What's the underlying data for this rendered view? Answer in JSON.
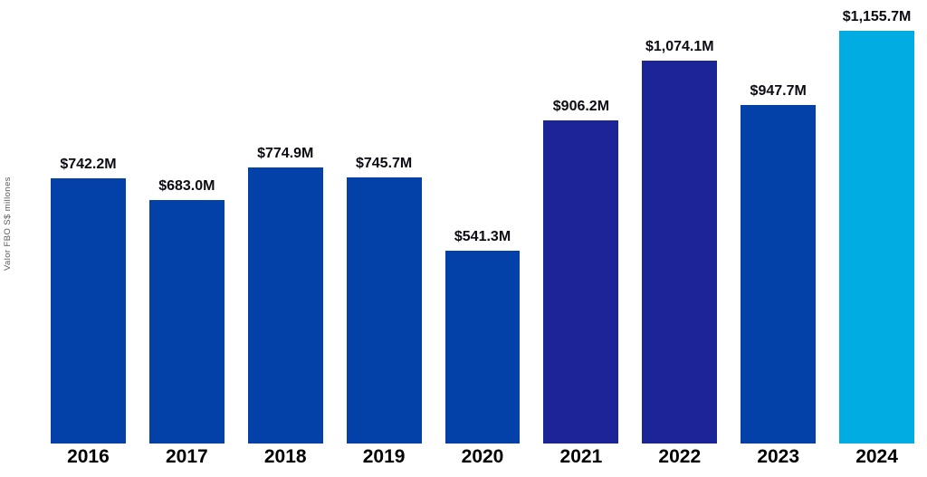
{
  "chart_data": {
    "type": "bar",
    "title": "",
    "xlabel": "",
    "ylabel": "Valor FBO S$ millones",
    "categories": [
      "2016",
      "2017",
      "2018",
      "2019",
      "2020",
      "2021",
      "2022",
      "2023",
      "2024"
    ],
    "values": [
      742.2,
      683.0,
      774.9,
      745.7,
      541.3,
      906.2,
      1074.1,
      947.7,
      1155.7
    ],
    "value_labels": [
      "$742.2M",
      "$683.0M",
      "$774.9M",
      "$745.7M",
      "$541.3M",
      "$906.2M",
      "$1,074.1M",
      "$947.7M",
      "$1,155.7M"
    ],
    "bar_colors": [
      "#0341a8",
      "#0341a8",
      "#0341a8",
      "#0341a8",
      "#0341a8",
      "#1b2596",
      "#1b2596",
      "#0341a8",
      "#00ace1"
    ],
    "ylim": [
      0,
      1243
    ],
    "grid": false,
    "legend": "none",
    "value_label_color": "#0b0b14",
    "tick_label_color": "#010101"
  }
}
